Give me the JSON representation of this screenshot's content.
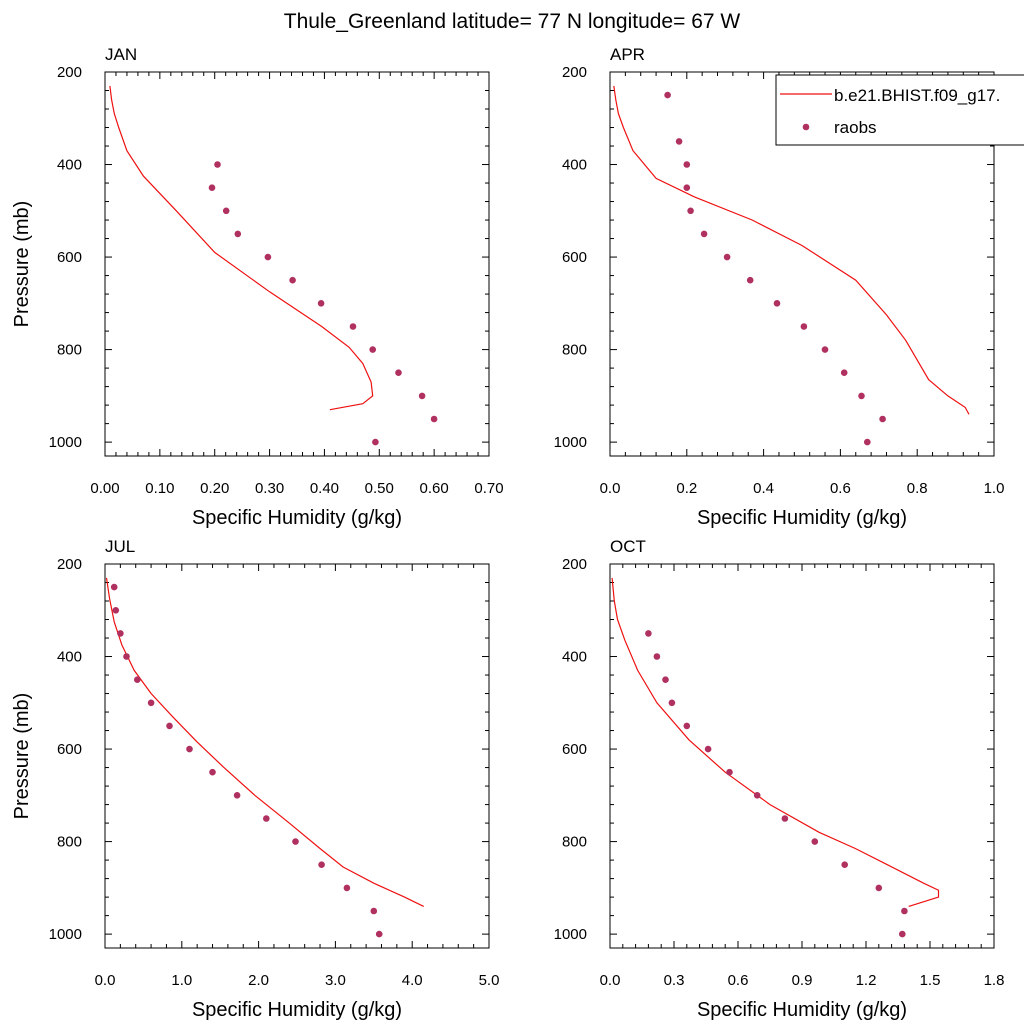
{
  "figure": {
    "title": "Thule_Greenland  latitude= 77 N longitude= 67 W"
  },
  "legend": {
    "model_label": "b.e21.BHIST.f09_g17.",
    "obs_label": "raobs"
  },
  "colors": {
    "model_line": "#ee1111",
    "obs_marker": "#b03060",
    "axis": "#000000"
  },
  "chart_data": [
    {
      "type": "line",
      "panel": "JAN",
      "title": "JAN",
      "xlabel": "Specific Humidity (g/kg)",
      "ylabel": "Pressure (mb)",
      "xlim": [
        0,
        0.7
      ],
      "ylim": [
        1030,
        200
      ],
      "xticks": [
        0,
        0.1,
        0.2,
        0.3,
        0.4,
        0.5,
        0.6,
        0.7
      ],
      "xtick_labels": [
        "0.00",
        "0.10",
        "0.20",
        "0.30",
        "0.40",
        "0.50",
        "0.60",
        "0.70"
      ],
      "yticks": [
        200,
        400,
        600,
        800,
        1000
      ],
      "series": [
        {
          "name": "b.e21.BHIST.f09_g17.",
          "kind": "line",
          "x": [
            0.41,
            0.47,
            0.488,
            0.485,
            0.47,
            0.445,
            0.395,
            0.3,
            0.2,
            0.13,
            0.07,
            0.04,
            0.025,
            0.017,
            0.012,
            0.009
          ],
          "y": [
            930,
            917,
            900,
            870,
            830,
            795,
            750,
            675,
            590,
            500,
            425,
            370,
            320,
            290,
            260,
            230
          ]
        },
        {
          "name": "raobs",
          "kind": "scatter",
          "x": [
            0.493,
            0.6,
            0.578,
            0.535,
            0.488,
            0.452,
            0.394,
            0.342,
            0.297,
            0.242,
            0.221,
            0.195,
            0.205
          ],
          "y": [
            1000,
            950,
            900,
            850,
            800,
            750,
            700,
            650,
            600,
            550,
            500,
            450,
            400
          ]
        }
      ]
    },
    {
      "type": "line",
      "panel": "APR",
      "title": "APR",
      "xlabel": "Specific Humidity (g/kg)",
      "ylabel": "",
      "xlim": [
        0,
        1.0
      ],
      "ylim": [
        1030,
        200
      ],
      "xticks": [
        0,
        0.2,
        0.4,
        0.6,
        0.8,
        1.0
      ],
      "xtick_labels": [
        "0.0",
        "0.2",
        "0.4",
        "0.6",
        "0.8",
        "1.0"
      ],
      "yticks": [
        200,
        400,
        600,
        800,
        1000
      ],
      "series": [
        {
          "name": "b.e21.BHIST.f09_g17.",
          "kind": "line",
          "x": [
            0.935,
            0.925,
            0.88,
            0.83,
            0.77,
            0.72,
            0.64,
            0.5,
            0.37,
            0.22,
            0.12,
            0.06,
            0.035,
            0.022,
            0.015,
            0.01
          ],
          "y": [
            940,
            925,
            900,
            865,
            780,
            725,
            650,
            575,
            520,
            470,
            430,
            370,
            320,
            290,
            260,
            230
          ]
        },
        {
          "name": "raobs",
          "kind": "scatter",
          "x": [
            0.67,
            0.71,
            0.655,
            0.61,
            0.56,
            0.505,
            0.435,
            0.365,
            0.305,
            0.245,
            0.21,
            0.2,
            0.2,
            0.18,
            0.15
          ],
          "y": [
            1000,
            950,
            900,
            850,
            800,
            750,
            700,
            650,
            600,
            550,
            500,
            450,
            400,
            350,
            250
          ]
        }
      ]
    },
    {
      "type": "line",
      "panel": "JUL",
      "title": "JUL",
      "xlabel": "Specific Humidity (g/kg)",
      "ylabel": "Pressure (mb)",
      "xlim": [
        0,
        5.0
      ],
      "ylim": [
        1030,
        200
      ],
      "xticks": [
        0,
        1,
        2,
        3,
        4,
        5
      ],
      "xtick_labels": [
        "0.0",
        "1.0",
        "2.0",
        "3.0",
        "4.0",
        "5.0"
      ],
      "yticks": [
        200,
        400,
        600,
        800,
        1000
      ],
      "series": [
        {
          "name": "b.e21.BHIST.f09_g17.",
          "kind": "line",
          "x": [
            4.15,
            3.9,
            3.5,
            3.1,
            2.8,
            2.4,
            1.95,
            1.55,
            1.2,
            0.88,
            0.6,
            0.38,
            0.22,
            0.12,
            0.06,
            0.02
          ],
          "y": [
            940,
            920,
            890,
            855,
            815,
            760,
            700,
            640,
            585,
            530,
            480,
            430,
            375,
            325,
            275,
            230
          ]
        },
        {
          "name": "raobs",
          "kind": "scatter",
          "x": [
            3.57,
            3.5,
            3.15,
            2.82,
            2.48,
            2.1,
            1.72,
            1.4,
            1.1,
            0.84,
            0.6,
            0.42,
            0.28,
            0.2,
            0.14,
            0.12
          ],
          "y": [
            1000,
            950,
            900,
            850,
            800,
            750,
            700,
            650,
            600,
            550,
            500,
            450,
            400,
            350,
            300,
            250
          ]
        }
      ]
    },
    {
      "type": "line",
      "panel": "OCT",
      "title": "OCT",
      "xlabel": "Specific Humidity (g/kg)",
      "ylabel": "",
      "xlim": [
        0,
        1.8
      ],
      "ylim": [
        1030,
        200
      ],
      "xticks": [
        0,
        0.3,
        0.6,
        0.9,
        1.2,
        1.5,
        1.8
      ],
      "xtick_labels": [
        "0.0",
        "0.3",
        "0.6",
        "0.9",
        "1.2",
        "1.5",
        "1.8"
      ],
      "yticks": [
        200,
        400,
        600,
        800,
        1000
      ],
      "series": [
        {
          "name": "b.e21.BHIST.f09_g17.",
          "kind": "line",
          "x": [
            1.4,
            1.54,
            1.54,
            1.47,
            1.3,
            1.15,
            0.98,
            0.75,
            0.54,
            0.37,
            0.22,
            0.13,
            0.07,
            0.035,
            0.02,
            0.01
          ],
          "y": [
            940,
            920,
            905,
            890,
            850,
            815,
            780,
            720,
            650,
            580,
            500,
            430,
            365,
            320,
            280,
            230
          ]
        },
        {
          "name": "raobs",
          "kind": "scatter",
          "x": [
            1.37,
            1.38,
            1.26,
            1.1,
            0.96,
            0.82,
            0.69,
            0.56,
            0.46,
            0.36,
            0.29,
            0.26,
            0.22,
            0.18
          ],
          "y": [
            1000,
            950,
            900,
            850,
            800,
            750,
            700,
            650,
            600,
            550,
            500,
            450,
            400,
            350
          ]
        }
      ]
    }
  ]
}
